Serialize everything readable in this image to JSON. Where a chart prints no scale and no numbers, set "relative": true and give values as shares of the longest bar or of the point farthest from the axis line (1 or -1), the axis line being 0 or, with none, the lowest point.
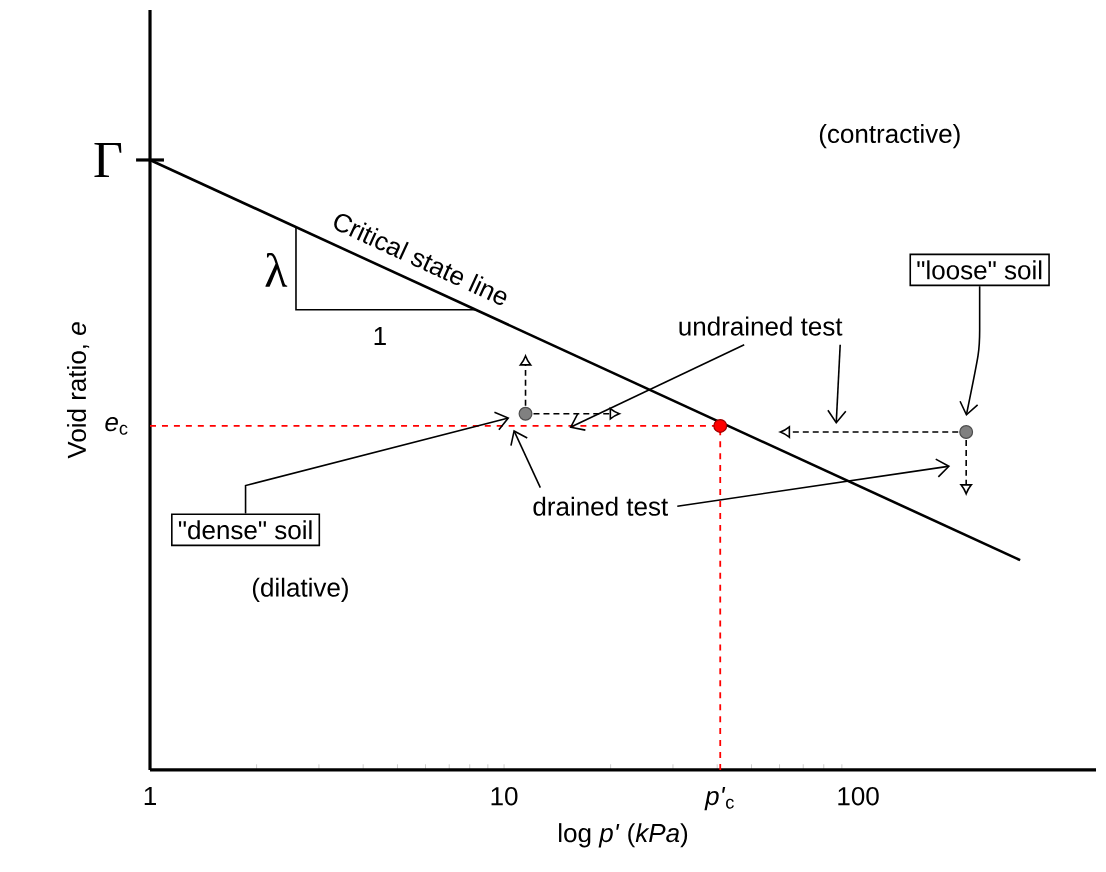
{
  "chart_data": {
    "type": "line",
    "relative": true,
    "log": "x",
    "xlim": [
      1,
      470
    ],
    "xticks": [
      1,
      10,
      100
    ],
    "xlabel": "log *p'* (*kPa*)",
    "ylabel": "Void ratio, *e*",
    "series": [
      {
        "name": "Critical state line",
        "color": "#000000",
        "x": [
          1,
          287
        ],
        "values": [
          1.0,
          0.344
        ]
      },
      {
        "type": "scatter",
        "color": "#808080",
        "x": [
          11.5,
          202
        ],
        "values": [
          0.584,
          0.554
        ]
      },
      {
        "type": "scatter",
        "color": "#ff0000",
        "x": [
          40.8
        ],
        "values": [
          0.564
        ]
      }
    ],
    "ref_lines": [
      {
        "axis": "y",
        "value": 0.564,
        "label": "*e*$_{c}$",
        "color": "#ff0000",
        "line_style": "dashed"
      },
      {
        "axis": "x",
        "value": 40.8,
        "label": "*p'*$_{c}$",
        "color": "#ff0000",
        "line_style": "dashed"
      }
    ],
    "annotations": [
      "(contractive)",
      "(dilative)",
      {
        "text": "Γ",
        "x": 1,
        "y": 1.0
      },
      "λ",
      "1",
      "undrained test",
      "drained test",
      "\"dense\" soil",
      "\"loose\" soil"
    ]
  }
}
